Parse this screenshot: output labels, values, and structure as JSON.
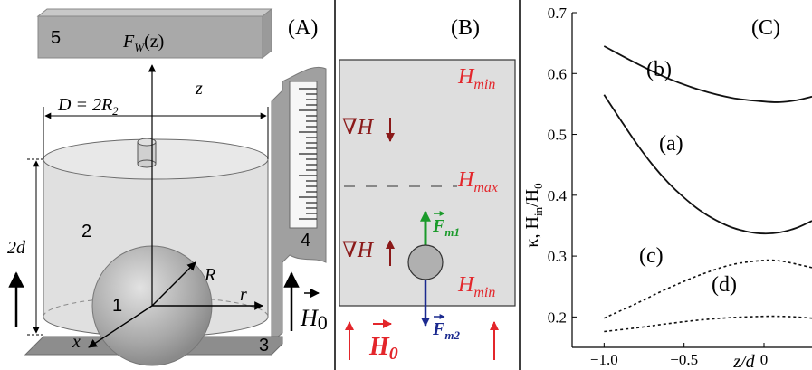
{
  "panel_a": {
    "label": "(A)",
    "sensor_number": "5",
    "force_label": "F",
    "force_sub": "W",
    "force_arg": "(z)",
    "z_label": "z",
    "diameter_label": "D = 2R",
    "diameter_sub": "2",
    "height_label": "2d",
    "ball_number": "1",
    "fluid_number": "2",
    "base_number": "3",
    "stage_number": "4",
    "radius_label": "R",
    "r_label": "r",
    "x_label": "x",
    "field_label": "H",
    "field_sub": "0"
  },
  "panel_b": {
    "label": "(B)",
    "hmin_top": "H",
    "hmin_top_sub": "min",
    "hmax": "H",
    "hmax_sub": "max",
    "hmin_bottom": "H",
    "hmin_bottom_sub": "min",
    "grad_upper": "∇H",
    "grad_lower": "∇H",
    "fm1": "F",
    "fm1_sub": "m1",
    "fm2": "F",
    "fm2_sub": "m2",
    "field": "H",
    "field_sub": "0",
    "colors": {
      "red": "#e3262b",
      "darkred": "#8b1a1a",
      "green": "#1a9a2a",
      "blue": "#1b2a8f"
    }
  },
  "panel_c": {
    "label": "(C)",
    "curve_labels": [
      "(b)",
      "(a)",
      "(c)",
      "(d)"
    ]
  },
  "chart_data": {
    "type": "line",
    "title": "",
    "xlabel": "z/d",
    "ylabel": "κ, H_in/H_0",
    "ylabel_parts": {
      "kappa": "κ, H",
      "in": "in",
      "slash": "/H",
      "zero": "0"
    },
    "xlim": [
      -1.2,
      0.3
    ],
    "ylim": [
      0.15,
      0.7
    ],
    "x_ticks": [
      "−1.0",
      "−0.5",
      "0"
    ],
    "y_ticks": [
      "0.2",
      "0.3",
      "0.4",
      "0.5",
      "0.6",
      "0.7"
    ],
    "series": [
      {
        "name": "(b)",
        "style": "solid",
        "x": [
          -1.0,
          -0.8,
          -0.6,
          -0.4,
          -0.2,
          0.0,
          0.1,
          0.2,
          0.3
        ],
        "y": [
          0.645,
          0.617,
          0.592,
          0.573,
          0.56,
          0.554,
          0.553,
          0.556,
          0.562
        ]
      },
      {
        "name": "(a)",
        "style": "solid",
        "x": [
          -1.0,
          -0.9,
          -0.8,
          -0.7,
          -0.6,
          -0.5,
          -0.4,
          -0.3,
          -0.2,
          -0.1,
          0.0,
          0.1,
          0.2,
          0.3
        ],
        "y": [
          0.565,
          0.525,
          0.486,
          0.451,
          0.421,
          0.396,
          0.375,
          0.359,
          0.347,
          0.34,
          0.337,
          0.339,
          0.346,
          0.358
        ]
      },
      {
        "name": "(c)",
        "style": "dotted",
        "x": [
          -1.0,
          -0.8,
          -0.6,
          -0.4,
          -0.2,
          0.0,
          0.1,
          0.2,
          0.3
        ],
        "y": [
          0.198,
          0.222,
          0.247,
          0.269,
          0.286,
          0.293,
          0.292,
          0.287,
          0.281
        ]
      },
      {
        "name": "(d)",
        "style": "dotted",
        "x": [
          -1.0,
          -0.8,
          -0.6,
          -0.4,
          -0.2,
          0.0,
          0.1,
          0.2,
          0.3
        ],
        "y": [
          0.176,
          0.182,
          0.189,
          0.195,
          0.199,
          0.201,
          0.201,
          0.2,
          0.198
        ]
      }
    ]
  }
}
